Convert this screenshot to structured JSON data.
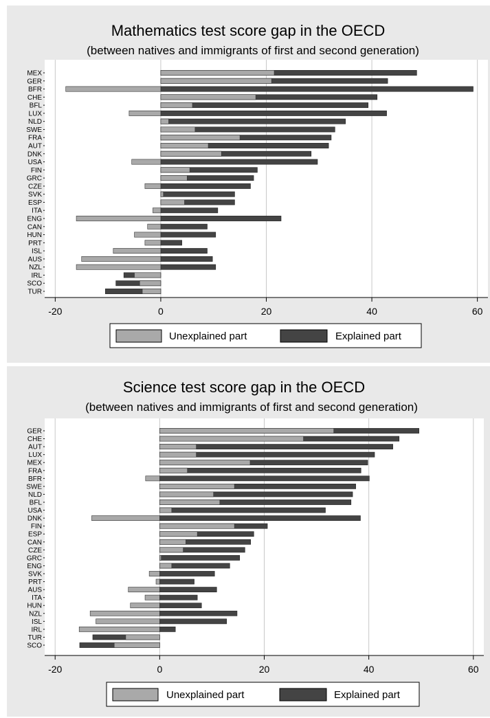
{
  "colors": {
    "unexplained": "#a9a9a9",
    "explained": "#444444",
    "panel_bg": "#e9e9e9",
    "plot_bg": "#ffffff",
    "grid": "#c8c8c8"
  },
  "chart_data": [
    {
      "type": "bar",
      "orientation": "horizontal",
      "stacked": "overlay",
      "title": "Mathematics test score gap in the OECD",
      "subtitle": "(between natives and immigrants of first and second generation)",
      "xlim": [
        -22,
        62
      ],
      "xticks": [
        -20,
        0,
        20,
        40,
        60
      ],
      "grid": true,
      "legend_position": "bottom",
      "categories": [
        "MEX",
        "GER",
        "BFR",
        "CHE",
        "BFL",
        "LUX",
        "NLD",
        "SWE",
        "FRA",
        "AUT",
        "DNK",
        "USA",
        "FIN",
        "GRC",
        "CZE",
        "SVK",
        "ESP",
        "ITA",
        "ENG",
        "CAN",
        "HUN",
        "PRT",
        "ISL",
        "AUS",
        "NZL",
        "IRL",
        "SCO",
        "TUR"
      ],
      "series": [
        {
          "name": "Unexplained part",
          "values": [
            21.5,
            21,
            -18,
            18,
            6,
            -6,
            1.5,
            6.5,
            15,
            9,
            11.5,
            -5.5,
            5.5,
            5,
            -3,
            0.5,
            4.5,
            -1.5,
            -16,
            -2.5,
            -5,
            -3,
            -9,
            -15,
            -16,
            -5,
            -4,
            -3.5
          ]
        },
        {
          "name": "Explained part",
          "values": [
            48.5,
            43,
            59.2,
            41,
            39.3,
            42.8,
            35,
            33,
            32.3,
            31.8,
            28.5,
            29.7,
            18.3,
            17.6,
            17,
            14,
            14,
            10.8,
            22.8,
            8.8,
            10.4,
            4,
            8.8,
            9.8,
            10.4,
            -7,
            -8.5,
            -10.5
          ]
        }
      ]
    },
    {
      "type": "bar",
      "orientation": "horizontal",
      "stacked": "overlay",
      "title": "Science test score gap in the OECD",
      "subtitle": "(between natives and immigrants of first and second generation)",
      "xlim": [
        -22,
        62
      ],
      "xticks": [
        -20,
        0,
        20,
        40,
        60
      ],
      "grid": true,
      "legend_position": "bottom",
      "categories": [
        "GER",
        "CHE",
        "AUT",
        "LUX",
        "MEX",
        "FRA",
        "BFR",
        "SWE",
        "NLD",
        "BFL",
        "USA",
        "DNK",
        "FIN",
        "ESP",
        "CAN",
        "CZE",
        "GRC",
        "ENG",
        "SVK",
        "PRT",
        "AUS",
        "ITA",
        "HUN",
        "NZL",
        "ISL",
        "IRL",
        "TUR",
        "SCO"
      ],
      "series": [
        {
          "name": "Unexplained part",
          "values": [
            33.3,
            27.5,
            7,
            7,
            17.3,
            5.3,
            -2.7,
            14.3,
            10.3,
            11.5,
            2.3,
            -13,
            14.3,
            7.2,
            5,
            4.5,
            0.3,
            2.3,
            -2,
            -0.7,
            -6,
            -2.8,
            -5.6,
            -13.3,
            -12.2,
            -15.4,
            -6.5,
            -8.7
          ]
        },
        {
          "name": "Explained part",
          "values": [
            49.6,
            45.8,
            44.6,
            41.1,
            39.8,
            38.5,
            40.1,
            37.5,
            36.9,
            36.6,
            31.7,
            38.4,
            20.6,
            18,
            17.4,
            16.3,
            15.3,
            13.4,
            10.5,
            6.6,
            10.9,
            7.2,
            8,
            14.8,
            12.8,
            3,
            -12.8,
            -15.3
          ]
        }
      ]
    }
  ]
}
